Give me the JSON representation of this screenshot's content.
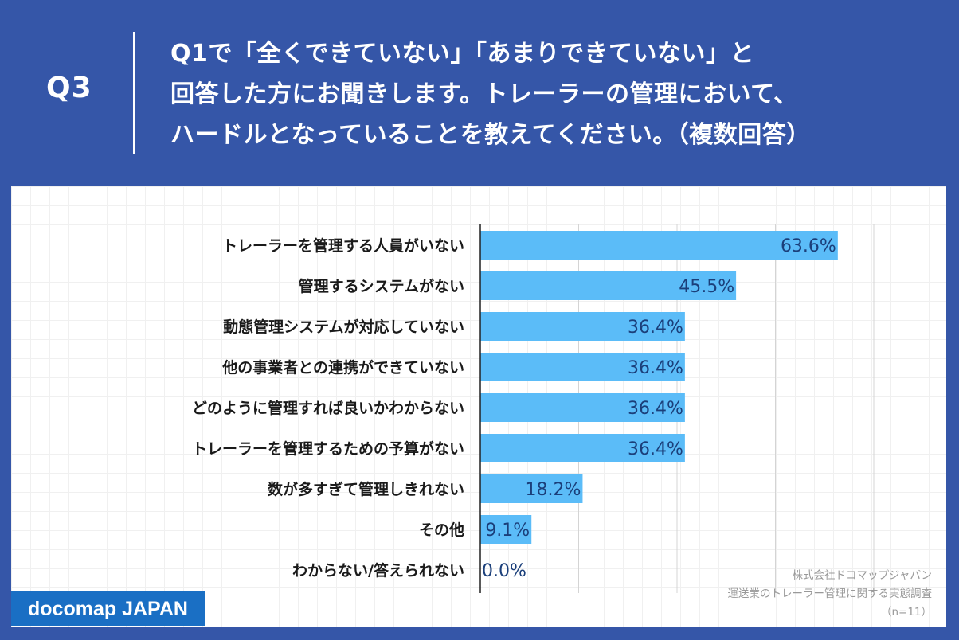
{
  "header": {
    "q_label": "Q3",
    "question_lines": [
      "Q1で「全くできていない」「あまりできていない」と",
      "回答した方にお聞きします。トレーラーの管理において、",
      "ハードルとなっていることを教えてください。（複数回答）"
    ]
  },
  "chart_data": {
    "type": "bar",
    "orientation": "horizontal",
    "categories": [
      "トレーラーを管理する人員がいない",
      "管理するシステムがない",
      "動態管理システムが対応していない",
      "他の事業者との連携ができていない",
      "どのように管理すれば良いかわからない",
      "トレーラーを管理するための予算がない",
      "数が多すぎて管理しきれない",
      "その他",
      "わからない/答えられない"
    ],
    "values": [
      63.6,
      45.5,
      36.4,
      36.4,
      36.4,
      36.4,
      18.2,
      9.1,
      0.0
    ],
    "value_labels": [
      "63.6%",
      "45.5%",
      "36.4%",
      "36.4%",
      "36.4%",
      "36.4%",
      "18.2%",
      "9.1%",
      "0.0%"
    ],
    "xlim": [
      0,
      70
    ],
    "grid": true,
    "gridline_values": [
      17.5,
      35,
      52.5,
      70
    ],
    "bar_color": "#5bbcf8",
    "label_color": "#1b3f7a"
  },
  "footer": {
    "logo": "docomap JAPAN",
    "source_lines": [
      "株式会社ドコマップジャパン",
      "運送業のトレーラー管理に関する実態調査",
      "（n=11）"
    ]
  },
  "colors": {
    "background": "#3556a8",
    "panel": "#ffffff",
    "logo_bg": "#1a6fc4"
  }
}
